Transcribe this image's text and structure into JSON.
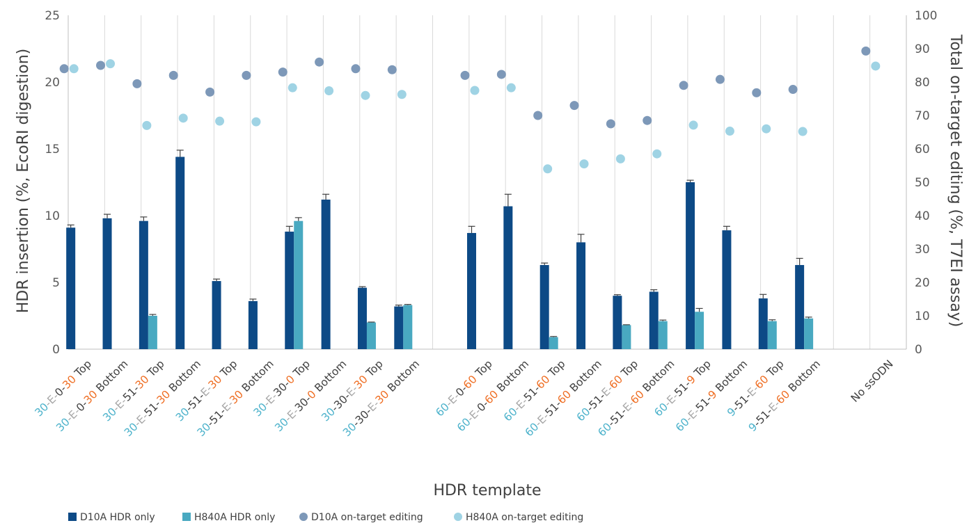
{
  "chart_data": {
    "type": "bar",
    "title": "",
    "xlabel": "HDR template",
    "ylabel": "HDR insertion (%, EcoRI digestion)",
    "y2label": "Total on-target editing (%, T7EI assay)",
    "ylim": [
      0,
      25
    ],
    "y2lim": [
      0,
      100
    ],
    "yticks": [
      "0",
      "5",
      "10",
      "15",
      "20",
      "25"
    ],
    "y2ticks": [
      "0",
      "10",
      "20",
      "30",
      "40",
      "50",
      "60",
      "70",
      "80",
      "90",
      "100"
    ],
    "grid": "vertical category separators",
    "legend_position": "bottom-left",
    "colors": {
      "d10a_bar": "#0d4a86",
      "h840a_bar": "#49a9c1",
      "d10a_dot": "#7d98b8",
      "h840a_dot": "#9fd3e4",
      "label_arm_30_60_9_lead": "#4cb2cb",
      "label_E": "#a7a7a7",
      "label_arm_30_60_9_tail": "#ef6e23",
      "label_plain": "#404040"
    },
    "categories": [
      "30-E-0-30 Top",
      "30-E-0-30 Bottom",
      "30-E-51-30 Top",
      "30-E-51-30 Bottom",
      "30-51-E-30 Top",
      "30-51-E-30 Bottom",
      "30-E-30-0 Top",
      "30-E-30-0 Bottom",
      "30-30-E-30 Top",
      "30-30-E-30 Bottom",
      "",
      "60-E-0-60 Top",
      "60-E-0-60 Bottom",
      "60-E-51-60 Top",
      "60-E-51-60 Bottom",
      "60-51-E-60 Top",
      "60-51-E-60 Bottom",
      "60-E-51-9 Top",
      "60-E-51-9 Bottom",
      "9-51-E-60 Top",
      "9-51-E-60 Bottom",
      "",
      "No ssODN"
    ],
    "category_label_segments": [
      [
        [
          "30",
          "blue"
        ],
        [
          "-E-",
          "gray"
        ],
        [
          "0-",
          "plain"
        ],
        [
          "30",
          "orange"
        ],
        [
          " Top",
          "plain"
        ]
      ],
      [
        [
          "30",
          "blue"
        ],
        [
          "-E-",
          "gray"
        ],
        [
          "0-",
          "plain"
        ],
        [
          "30",
          "orange"
        ],
        [
          " Bottom",
          "plain"
        ]
      ],
      [
        [
          "30",
          "blue"
        ],
        [
          "-E-",
          "gray"
        ],
        [
          "51-",
          "plain"
        ],
        [
          "30",
          "orange"
        ],
        [
          " Top",
          "plain"
        ]
      ],
      [
        [
          "30",
          "blue"
        ],
        [
          "-E-",
          "gray"
        ],
        [
          "51-",
          "plain"
        ],
        [
          "30",
          "orange"
        ],
        [
          " Bottom",
          "plain"
        ]
      ],
      [
        [
          "30",
          "blue"
        ],
        [
          "-51-",
          "plain"
        ],
        [
          "E-",
          "gray"
        ],
        [
          "30",
          "orange"
        ],
        [
          " Top",
          "plain"
        ]
      ],
      [
        [
          "30",
          "blue"
        ],
        [
          "-51-",
          "plain"
        ],
        [
          "E-",
          "gray"
        ],
        [
          "30",
          "orange"
        ],
        [
          " Bottom",
          "plain"
        ]
      ],
      [
        [
          "30",
          "blue"
        ],
        [
          "-E-",
          "gray"
        ],
        [
          "30-",
          "plain"
        ],
        [
          "0",
          "orange"
        ],
        [
          " Top",
          "plain"
        ]
      ],
      [
        [
          "30",
          "blue"
        ],
        [
          "-E-",
          "gray"
        ],
        [
          "30-",
          "plain"
        ],
        [
          "0",
          "orange"
        ],
        [
          " Bottom",
          "plain"
        ]
      ],
      [
        [
          "30",
          "blue"
        ],
        [
          "-30-",
          "plain"
        ],
        [
          "E-",
          "gray"
        ],
        [
          "30",
          "orange"
        ],
        [
          " Top",
          "plain"
        ]
      ],
      [
        [
          "30",
          "blue"
        ],
        [
          "-30-",
          "plain"
        ],
        [
          "E-",
          "gray"
        ],
        [
          "30",
          "orange"
        ],
        [
          " Bottom",
          "plain"
        ]
      ],
      [],
      [
        [
          "60",
          "blue"
        ],
        [
          "-E-",
          "gray"
        ],
        [
          "0-",
          "plain"
        ],
        [
          "60",
          "orange"
        ],
        [
          " Top",
          "plain"
        ]
      ],
      [
        [
          "60",
          "blue"
        ],
        [
          "-E-",
          "gray"
        ],
        [
          "0-",
          "plain"
        ],
        [
          "60",
          "orange"
        ],
        [
          " Bottom",
          "plain"
        ]
      ],
      [
        [
          "60",
          "blue"
        ],
        [
          "-E-",
          "gray"
        ],
        [
          "51-",
          "plain"
        ],
        [
          "60",
          "orange"
        ],
        [
          " Top",
          "plain"
        ]
      ],
      [
        [
          "60",
          "blue"
        ],
        [
          "-E-",
          "gray"
        ],
        [
          "51-",
          "plain"
        ],
        [
          "60",
          "orange"
        ],
        [
          " Bottom",
          "plain"
        ]
      ],
      [
        [
          "60",
          "blue"
        ],
        [
          "-51-",
          "plain"
        ],
        [
          "E-",
          "gray"
        ],
        [
          "60",
          "orange"
        ],
        [
          " Top",
          "plain"
        ]
      ],
      [
        [
          "60",
          "blue"
        ],
        [
          "-51-",
          "plain"
        ],
        [
          "E-",
          "gray"
        ],
        [
          "60",
          "orange"
        ],
        [
          " Bottom",
          "plain"
        ]
      ],
      [
        [
          "60",
          "blue"
        ],
        [
          "-E-",
          "gray"
        ],
        [
          "51-",
          "plain"
        ],
        [
          "9",
          "orange"
        ],
        [
          " Top",
          "plain"
        ]
      ],
      [
        [
          "60",
          "blue"
        ],
        [
          "-E-",
          "gray"
        ],
        [
          "51-",
          "plain"
        ],
        [
          "9",
          "orange"
        ],
        [
          " Bottom",
          "plain"
        ]
      ],
      [
        [
          "9",
          "blue"
        ],
        [
          "-51-",
          "plain"
        ],
        [
          "E-",
          "gray"
        ],
        [
          "60",
          "orange"
        ],
        [
          " Top",
          "plain"
        ]
      ],
      [
        [
          "9",
          "blue"
        ],
        [
          "-51-",
          "plain"
        ],
        [
          "E-",
          "gray"
        ],
        [
          "60",
          "orange"
        ],
        [
          " Bottom",
          "plain"
        ]
      ],
      [],
      [
        [
          "No ssODN",
          "plain"
        ]
      ]
    ],
    "series": [
      {
        "name": "D10A HDR only",
        "type": "bar",
        "axis": "left",
        "values": [
          9.1,
          9.8,
          9.6,
          14.4,
          5.1,
          3.6,
          8.8,
          11.2,
          4.6,
          3.2,
          null,
          8.7,
          10.7,
          6.3,
          8.0,
          4.0,
          4.3,
          12.5,
          8.9,
          3.8,
          6.3,
          null,
          null
        ],
        "errors": [
          0.2,
          0.3,
          0.3,
          0.5,
          0.15,
          0.15,
          0.4,
          0.4,
          0.08,
          0.1,
          null,
          0.5,
          0.9,
          0.15,
          0.6,
          0.08,
          0.15,
          0.15,
          0.3,
          0.3,
          0.5,
          null,
          null
        ]
      },
      {
        "name": "H840A HDR only",
        "type": "bar",
        "axis": "left",
        "values": [
          null,
          null,
          2.5,
          null,
          null,
          null,
          9.6,
          null,
          2.0,
          3.3,
          null,
          null,
          null,
          0.9,
          null,
          1.8,
          2.1,
          2.8,
          null,
          2.1,
          2.3,
          null,
          null
        ],
        "errors": [
          null,
          null,
          0.1,
          null,
          null,
          null,
          0.25,
          null,
          0.03,
          0.05,
          null,
          null,
          null,
          0.05,
          null,
          0.03,
          0.08,
          0.25,
          null,
          0.1,
          0.1,
          null,
          null
        ]
      },
      {
        "name": "D10A on-target editing",
        "type": "scatter",
        "axis": "right",
        "values": [
          84,
          85,
          79.5,
          82,
          77,
          82,
          83,
          86,
          84,
          83.7,
          null,
          82,
          82.3,
          70,
          73,
          67.5,
          68.5,
          79,
          80.8,
          76.8,
          77.8,
          null,
          89.3
        ]
      },
      {
        "name": "H840A on-target editing",
        "type": "scatter",
        "axis": "right",
        "values": [
          84,
          85.5,
          67,
          69.2,
          68.3,
          68.1,
          78.3,
          77.4,
          76,
          76.3,
          null,
          77.5,
          78.3,
          54,
          55.5,
          57,
          58.5,
          67.1,
          65.3,
          66,
          65.2,
          null,
          84.8
        ]
      }
    ]
  }
}
